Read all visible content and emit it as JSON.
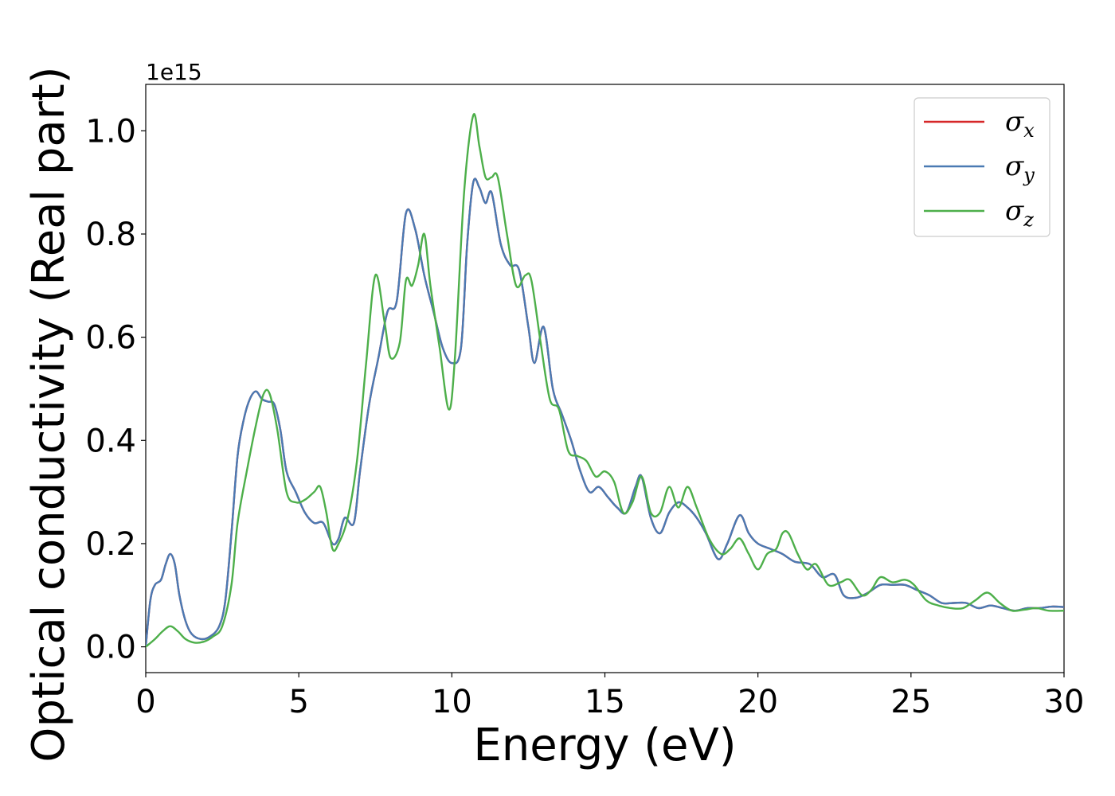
{
  "chart_data": {
    "type": "line",
    "xlabel": "Energy (eV)",
    "ylabel": "Optical conductivity (Real part)",
    "y_offset_label": "1e15",
    "xlim": [
      0,
      30
    ],
    "ylim": [
      -0.05,
      1.09
    ],
    "x_ticks": [
      0,
      5,
      10,
      15,
      20,
      25,
      30
    ],
    "x_tick_labels": [
      "0",
      "5",
      "10",
      "15",
      "20",
      "25",
      "30"
    ],
    "y_ticks": [
      0.0,
      0.2,
      0.4,
      0.6,
      0.8,
      1.0
    ],
    "y_tick_labels": [
      "0.0",
      "0.2",
      "0.4",
      "0.6",
      "0.8",
      "1.0"
    ],
    "grid": false,
    "legend_position": "top-right",
    "series": [
      {
        "name": "σx",
        "legend_main": "σ",
        "legend_sub": "x",
        "color": "#d62728",
        "x": [
          0,
          0.15,
          0.3,
          0.5,
          0.65,
          0.8,
          0.95,
          1.1,
          1.3,
          1.5,
          1.8,
          2.1,
          2.4,
          2.6,
          2.8,
          3.0,
          3.2,
          3.4,
          3.6,
          3.8,
          4.0,
          4.2,
          4.4,
          4.6,
          4.9,
          5.2,
          5.5,
          5.8,
          6.1,
          6.3,
          6.5,
          6.8,
          7.0,
          7.3,
          7.6,
          7.9,
          8.2,
          8.5,
          8.8,
          9.1,
          9.4,
          9.7,
          10.0,
          10.3,
          10.5,
          10.7,
          10.9,
          11.1,
          11.3,
          11.6,
          11.9,
          12.2,
          12.5,
          12.7,
          13.0,
          13.3,
          13.6,
          13.9,
          14.2,
          14.5,
          14.8,
          15.1,
          15.4,
          15.7,
          16.0,
          16.2,
          16.5,
          16.8,
          17.1,
          17.4,
          17.7,
          18.0,
          18.3,
          18.7,
          19.0,
          19.4,
          19.7,
          20.0,
          20.4,
          20.8,
          21.2,
          21.7,
          22.1,
          22.5,
          22.8,
          23.2,
          23.6,
          24.0,
          24.4,
          24.8,
          25.2,
          25.6,
          26.0,
          26.4,
          26.8,
          27.2,
          27.6,
          28.0,
          28.4,
          28.8,
          29.2,
          29.6,
          30.0
        ],
        "y": [
          0.0,
          0.09,
          0.12,
          0.13,
          0.16,
          0.18,
          0.16,
          0.1,
          0.05,
          0.025,
          0.015,
          0.02,
          0.04,
          0.09,
          0.22,
          0.37,
          0.44,
          0.48,
          0.495,
          0.48,
          0.475,
          0.47,
          0.42,
          0.34,
          0.3,
          0.26,
          0.24,
          0.24,
          0.2,
          0.21,
          0.25,
          0.24,
          0.34,
          0.47,
          0.56,
          0.65,
          0.67,
          0.84,
          0.81,
          0.72,
          0.65,
          0.58,
          0.55,
          0.58,
          0.78,
          0.9,
          0.89,
          0.86,
          0.88,
          0.78,
          0.74,
          0.73,
          0.62,
          0.55,
          0.62,
          0.5,
          0.45,
          0.4,
          0.34,
          0.3,
          0.31,
          0.29,
          0.27,
          0.26,
          0.31,
          0.33,
          0.25,
          0.22,
          0.26,
          0.28,
          0.27,
          0.25,
          0.22,
          0.17,
          0.2,
          0.255,
          0.22,
          0.2,
          0.19,
          0.18,
          0.165,
          0.16,
          0.135,
          0.14,
          0.1,
          0.095,
          0.105,
          0.12,
          0.12,
          0.12,
          0.11,
          0.1,
          0.085,
          0.085,
          0.085,
          0.075,
          0.08,
          0.075,
          0.07,
          0.075,
          0.075,
          0.078,
          0.077
        ]
      },
      {
        "name": "σy",
        "legend_main": "σ",
        "legend_sub": "y",
        "color": "#4a7ab3",
        "x": [
          0,
          0.15,
          0.3,
          0.5,
          0.65,
          0.8,
          0.95,
          1.1,
          1.3,
          1.5,
          1.8,
          2.1,
          2.4,
          2.6,
          2.8,
          3.0,
          3.2,
          3.4,
          3.6,
          3.8,
          4.0,
          4.2,
          4.4,
          4.6,
          4.9,
          5.2,
          5.5,
          5.8,
          6.1,
          6.3,
          6.5,
          6.8,
          7.0,
          7.3,
          7.6,
          7.9,
          8.2,
          8.5,
          8.8,
          9.1,
          9.4,
          9.7,
          10.0,
          10.3,
          10.5,
          10.7,
          10.9,
          11.1,
          11.3,
          11.6,
          11.9,
          12.2,
          12.5,
          12.7,
          13.0,
          13.3,
          13.6,
          13.9,
          14.2,
          14.5,
          14.8,
          15.1,
          15.4,
          15.7,
          16.0,
          16.2,
          16.5,
          16.8,
          17.1,
          17.4,
          17.7,
          18.0,
          18.3,
          18.7,
          19.0,
          19.4,
          19.7,
          20.0,
          20.4,
          20.8,
          21.2,
          21.7,
          22.1,
          22.5,
          22.8,
          23.2,
          23.6,
          24.0,
          24.4,
          24.8,
          25.2,
          25.6,
          26.0,
          26.4,
          26.8,
          27.2,
          27.6,
          28.0,
          28.4,
          28.8,
          29.2,
          29.6,
          30.0
        ],
        "y": [
          0.0,
          0.09,
          0.12,
          0.13,
          0.16,
          0.18,
          0.16,
          0.1,
          0.05,
          0.025,
          0.015,
          0.02,
          0.04,
          0.09,
          0.22,
          0.37,
          0.44,
          0.48,
          0.495,
          0.48,
          0.475,
          0.47,
          0.42,
          0.34,
          0.3,
          0.26,
          0.24,
          0.24,
          0.2,
          0.21,
          0.25,
          0.24,
          0.34,
          0.47,
          0.56,
          0.65,
          0.67,
          0.84,
          0.81,
          0.72,
          0.65,
          0.58,
          0.55,
          0.58,
          0.78,
          0.9,
          0.89,
          0.86,
          0.88,
          0.78,
          0.74,
          0.73,
          0.62,
          0.55,
          0.62,
          0.5,
          0.45,
          0.4,
          0.34,
          0.3,
          0.31,
          0.29,
          0.27,
          0.26,
          0.31,
          0.33,
          0.25,
          0.22,
          0.26,
          0.28,
          0.27,
          0.25,
          0.22,
          0.17,
          0.2,
          0.255,
          0.22,
          0.2,
          0.19,
          0.18,
          0.165,
          0.16,
          0.135,
          0.14,
          0.1,
          0.095,
          0.105,
          0.12,
          0.12,
          0.12,
          0.11,
          0.1,
          0.085,
          0.085,
          0.085,
          0.075,
          0.08,
          0.075,
          0.07,
          0.075,
          0.075,
          0.078,
          0.077
        ]
      },
      {
        "name": "σz",
        "legend_main": "σ",
        "legend_sub": "z",
        "color": "#4daf4a",
        "x": [
          0,
          0.3,
          0.55,
          0.8,
          1.05,
          1.3,
          1.6,
          1.9,
          2.2,
          2.5,
          2.8,
          3.0,
          3.3,
          3.6,
          3.85,
          4.05,
          4.3,
          4.6,
          4.9,
          5.2,
          5.5,
          5.7,
          5.9,
          6.1,
          6.3,
          6.6,
          6.9,
          7.2,
          7.5,
          7.8,
          8.0,
          8.3,
          8.5,
          8.7,
          8.9,
          9.1,
          9.3,
          9.6,
          9.9,
          10.1,
          10.4,
          10.7,
          10.9,
          11.1,
          11.3,
          11.5,
          11.8,
          12.1,
          12.4,
          12.6,
          12.9,
          13.2,
          13.5,
          13.8,
          14.1,
          14.4,
          14.7,
          15.0,
          15.3,
          15.6,
          15.9,
          16.2,
          16.5,
          16.8,
          17.1,
          17.4,
          17.7,
          18.0,
          18.4,
          18.8,
          19.1,
          19.4,
          19.7,
          20.0,
          20.3,
          20.6,
          20.8,
          21.0,
          21.3,
          21.6,
          21.9,
          22.3,
          22.7,
          23.0,
          23.4,
          23.7,
          24.0,
          24.4,
          24.8,
          25.1,
          25.5,
          25.9,
          26.3,
          26.7,
          27.1,
          27.5,
          27.9,
          28.3,
          28.7,
          29.1,
          29.5,
          30.0
        ],
        "y": [
          0.0,
          0.015,
          0.03,
          0.04,
          0.03,
          0.015,
          0.008,
          0.01,
          0.02,
          0.04,
          0.12,
          0.24,
          0.34,
          0.43,
          0.49,
          0.49,
          0.42,
          0.3,
          0.28,
          0.285,
          0.3,
          0.31,
          0.26,
          0.19,
          0.2,
          0.25,
          0.36,
          0.55,
          0.72,
          0.63,
          0.56,
          0.59,
          0.71,
          0.7,
          0.74,
          0.8,
          0.7,
          0.58,
          0.46,
          0.56,
          0.88,
          1.03,
          0.97,
          0.91,
          0.91,
          0.91,
          0.8,
          0.7,
          0.72,
          0.71,
          0.59,
          0.48,
          0.46,
          0.38,
          0.37,
          0.36,
          0.33,
          0.34,
          0.32,
          0.26,
          0.28,
          0.33,
          0.26,
          0.26,
          0.31,
          0.27,
          0.31,
          0.27,
          0.21,
          0.18,
          0.19,
          0.21,
          0.18,
          0.15,
          0.18,
          0.19,
          0.22,
          0.22,
          0.18,
          0.15,
          0.16,
          0.12,
          0.125,
          0.13,
          0.1,
          0.11,
          0.135,
          0.125,
          0.13,
          0.12,
          0.09,
          0.08,
          0.075,
          0.075,
          0.09,
          0.105,
          0.085,
          0.07,
          0.072,
          0.075,
          0.07,
          0.07
        ]
      }
    ]
  }
}
